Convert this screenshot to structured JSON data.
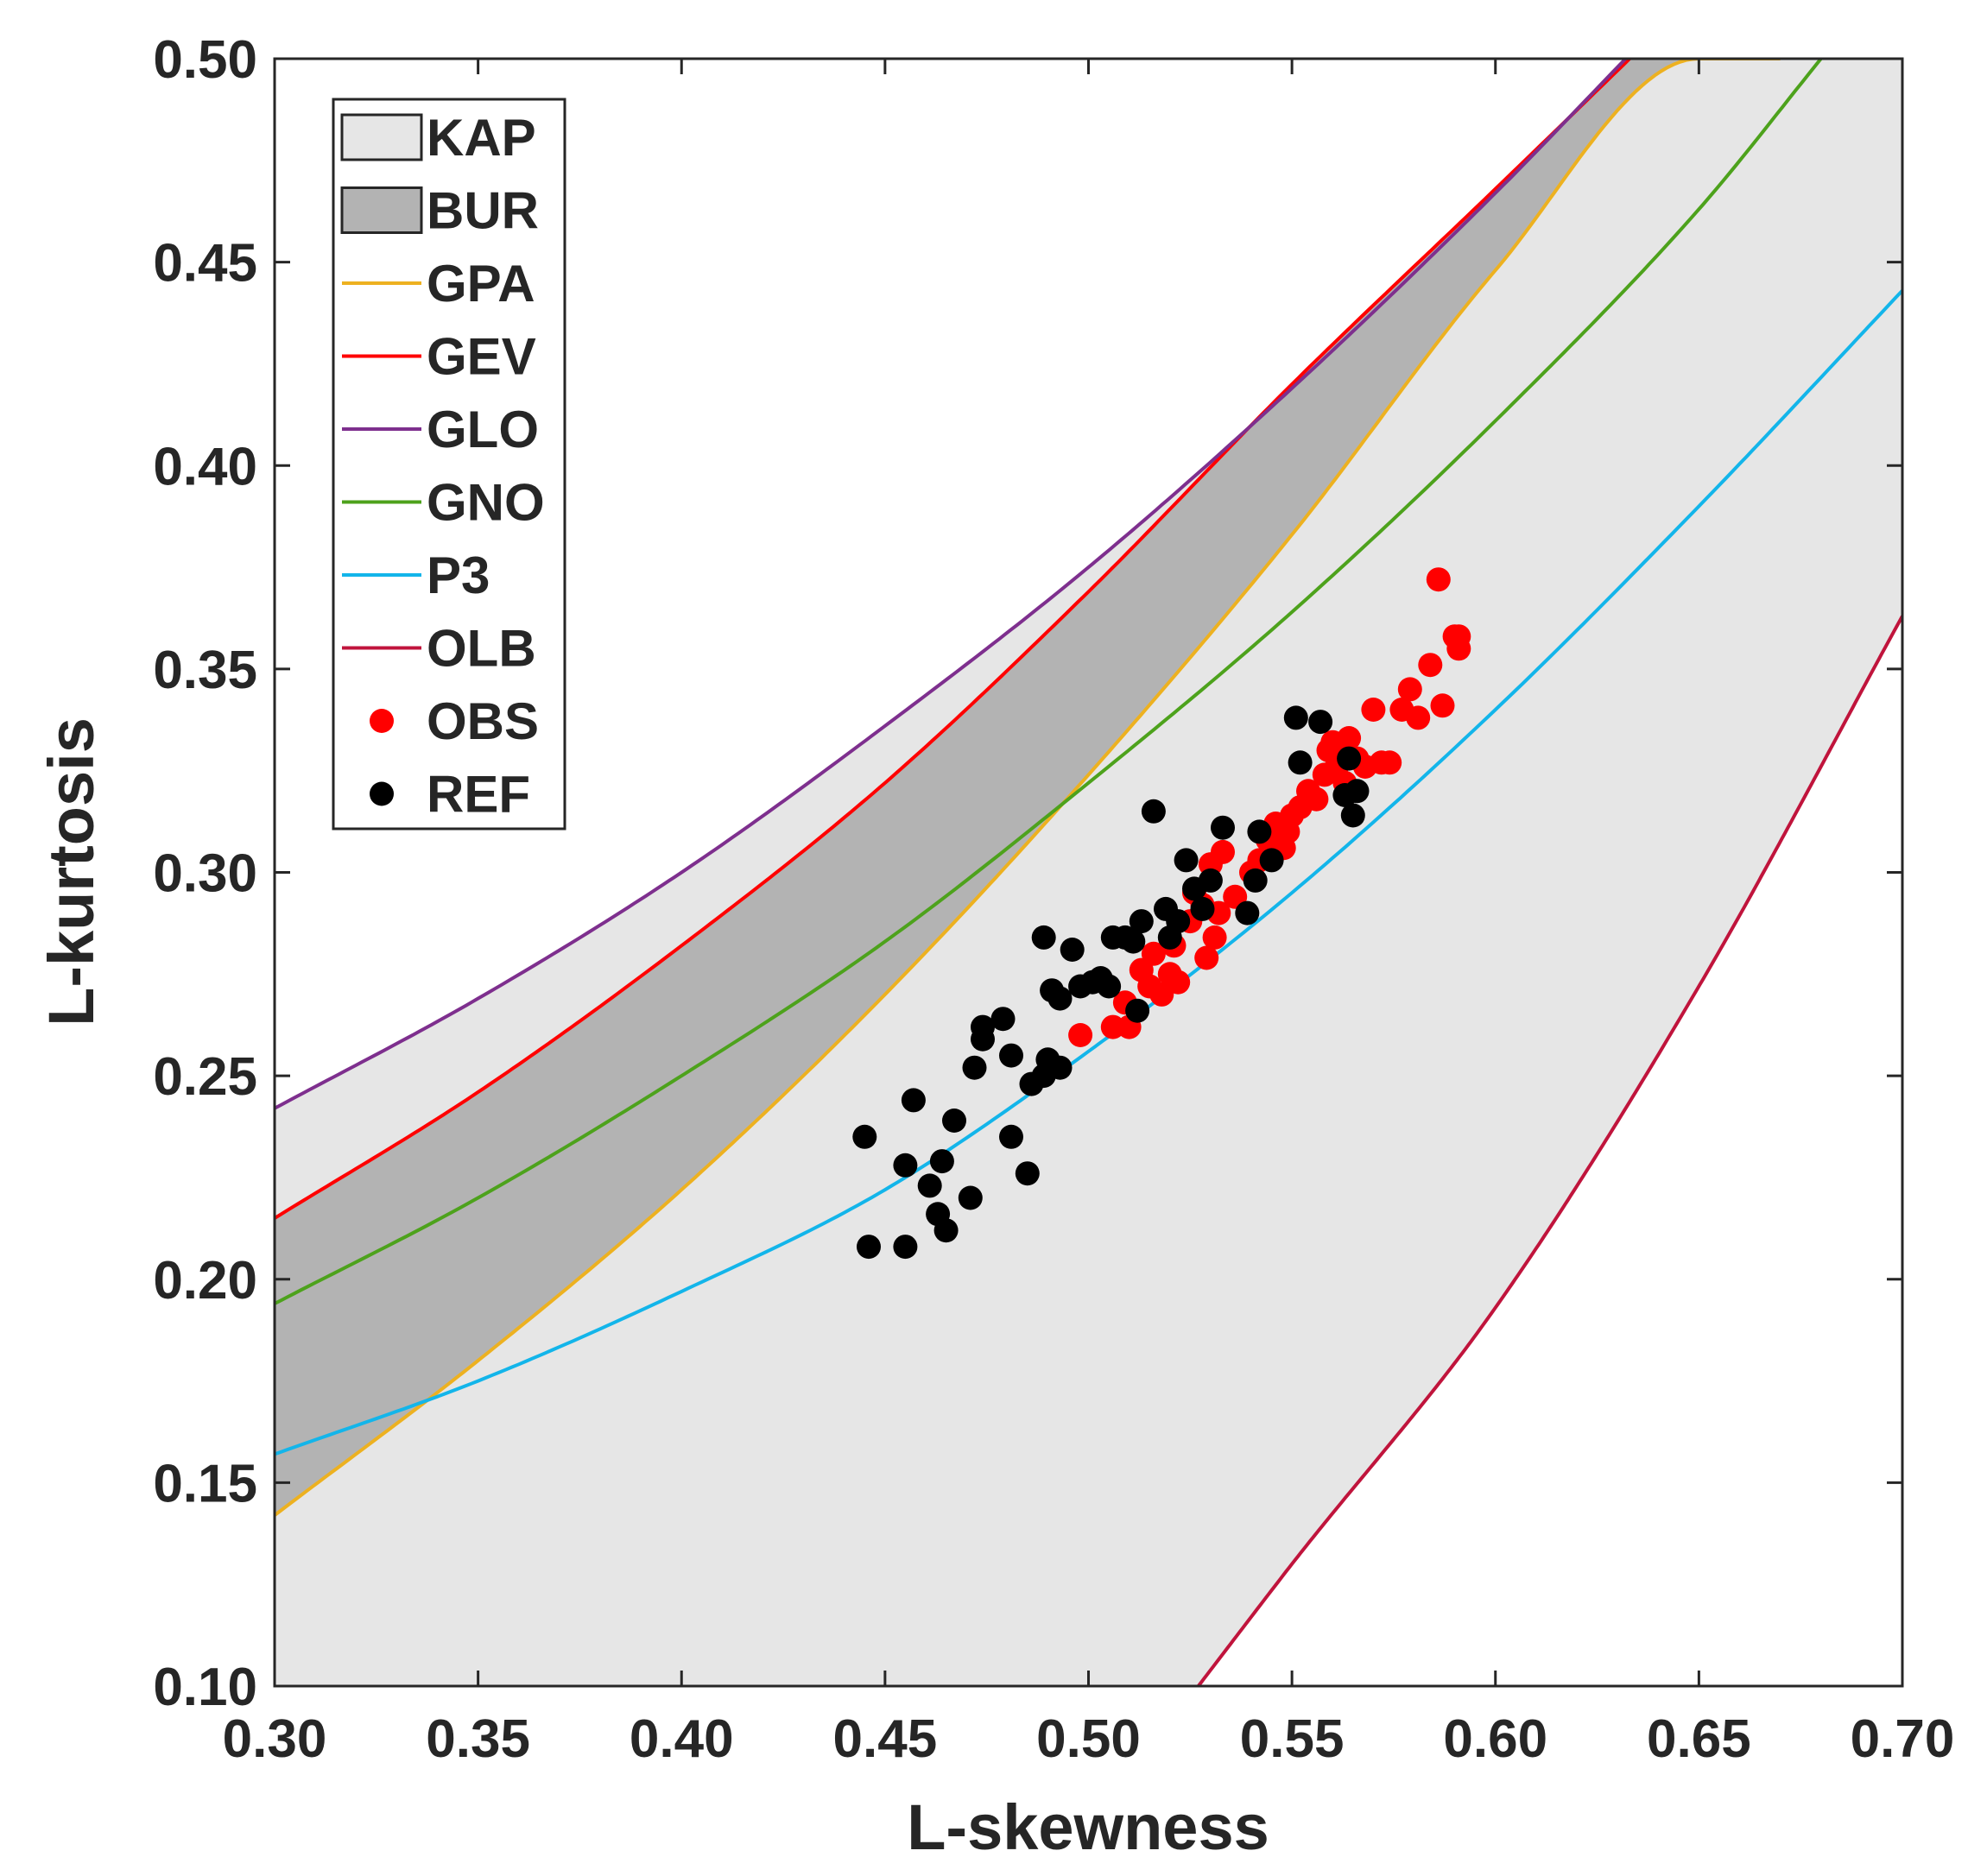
{
  "chart_data": {
    "type": "scatter",
    "title": "",
    "xlabel": "L-skewness",
    "ylabel": "L-kurtosis",
    "xlim": [
      0.3,
      0.7
    ],
    "ylim": [
      0.1,
      0.5
    ],
    "x_ticks": [
      "0.30",
      "0.35",
      "0.40",
      "0.45",
      "0.50",
      "0.55",
      "0.60",
      "0.65",
      "0.70"
    ],
    "y_ticks": [
      "0.10",
      "0.15",
      "0.20",
      "0.25",
      "0.30",
      "0.35",
      "0.40",
      "0.45",
      "0.50"
    ],
    "legend_position": "top-left",
    "legend": [
      "KAP",
      "BUR",
      "GPA",
      "GEV",
      "GLO",
      "GNO",
      "P3",
      "OLB",
      "OBS",
      "REF"
    ],
    "regions": [
      {
        "name": "KAP",
        "color": "#e6e6e6",
        "description": "area between GLO upper bound and OLB lower bound",
        "bounds": [
          "GLO",
          "OLB"
        ]
      },
      {
        "name": "BUR",
        "color": "#b3b3b3",
        "bounds": [
          "GPA",
          "GEV"
        ]
      }
    ],
    "series": [
      {
        "name": "GPA",
        "color": "#edb120",
        "x": [
          0.3,
          0.35,
          0.4,
          0.45,
          0.5,
          0.55,
          0.6,
          0.65,
          0.66
        ],
        "y": [
          0.142,
          0.18,
          0.222,
          0.27,
          0.324,
          0.383,
          0.448,
          0.5,
          0.5
        ]
      },
      {
        "name": "GEV",
        "color": "#ff0000",
        "x": [
          0.3,
          0.35,
          0.4,
          0.45,
          0.5,
          0.55,
          0.6,
          0.633
        ],
        "y": [
          0.215,
          0.246,
          0.282,
          0.322,
          0.369,
          0.42,
          0.468,
          0.5
        ]
      },
      {
        "name": "GLO",
        "color": "#7e2f8e",
        "x": [
          0.3,
          0.35,
          0.4,
          0.45,
          0.5,
          0.55,
          0.6,
          0.632
        ],
        "y": [
          0.242,
          0.269,
          0.3,
          0.336,
          0.375,
          0.419,
          0.467,
          0.5
        ]
      },
      {
        "name": "GNO",
        "color": "#4da21c",
        "x": [
          0.3,
          0.35,
          0.4,
          0.45,
          0.5,
          0.55,
          0.6,
          0.65,
          0.68
        ],
        "y": [
          0.194,
          0.22,
          0.25,
          0.283,
          0.322,
          0.364,
          0.411,
          0.463,
          0.5
        ]
      },
      {
        "name": "P3",
        "color": "#13b5ea",
        "x": [
          0.3,
          0.35,
          0.4,
          0.45,
          0.5,
          0.55,
          0.6,
          0.65,
          0.7
        ],
        "y": [
          0.157,
          0.175,
          0.197,
          0.222,
          0.256,
          0.295,
          0.34,
          0.39,
          0.443
        ]
      },
      {
        "name": "OLB",
        "color": "#c0143c",
        "x": [
          0.527,
          0.55,
          0.6,
          0.65,
          0.7
        ],
        "y": [
          0.1,
          0.13,
          0.193,
          0.272,
          0.363
        ]
      }
    ],
    "scatter": [
      {
        "name": "OBS",
        "color": "#ff0000",
        "points": [
          [
            0.498,
            0.26
          ],
          [
            0.506,
            0.262
          ],
          [
            0.509,
            0.268
          ],
          [
            0.51,
            0.262
          ],
          [
            0.513,
            0.276
          ],
          [
            0.515,
            0.272
          ],
          [
            0.516,
            0.28
          ],
          [
            0.518,
            0.27
          ],
          [
            0.52,
            0.275
          ],
          [
            0.521,
            0.282
          ],
          [
            0.522,
            0.273
          ],
          [
            0.525,
            0.288
          ],
          [
            0.526,
            0.295
          ],
          [
            0.528,
            0.292
          ],
          [
            0.529,
            0.279
          ],
          [
            0.53,
            0.302
          ],
          [
            0.531,
            0.284
          ],
          [
            0.532,
            0.29
          ],
          [
            0.533,
            0.305
          ],
          [
            0.536,
            0.294
          ],
          [
            0.54,
            0.3
          ],
          [
            0.542,
            0.303
          ],
          [
            0.544,
            0.308
          ],
          [
            0.546,
            0.312
          ],
          [
            0.548,
            0.306
          ],
          [
            0.549,
            0.31
          ],
          [
            0.55,
            0.314
          ],
          [
            0.552,
            0.316
          ],
          [
            0.554,
            0.32
          ],
          [
            0.556,
            0.318
          ],
          [
            0.558,
            0.324
          ],
          [
            0.559,
            0.33
          ],
          [
            0.56,
            0.332
          ],
          [
            0.561,
            0.326
          ],
          [
            0.563,
            0.322
          ],
          [
            0.564,
            0.333
          ],
          [
            0.566,
            0.328
          ],
          [
            0.568,
            0.326
          ],
          [
            0.57,
            0.34
          ],
          [
            0.572,
            0.327
          ],
          [
            0.574,
            0.327
          ],
          [
            0.577,
            0.34
          ],
          [
            0.579,
            0.345
          ],
          [
            0.581,
            0.338
          ],
          [
            0.584,
            0.351
          ],
          [
            0.586,
            0.372
          ],
          [
            0.587,
            0.341
          ],
          [
            0.59,
            0.358
          ],
          [
            0.591,
            0.355
          ],
          [
            0.591,
            0.358
          ]
        ]
      },
      {
        "name": "REF",
        "color": "#000000",
        "points": [
          [
            0.445,
            0.235
          ],
          [
            0.446,
            0.208
          ],
          [
            0.455,
            0.228
          ],
          [
            0.455,
            0.208
          ],
          [
            0.457,
            0.244
          ],
          [
            0.461,
            0.223
          ],
          [
            0.463,
            0.216
          ],
          [
            0.464,
            0.229
          ],
          [
            0.465,
            0.212
          ],
          [
            0.467,
            0.239
          ],
          [
            0.471,
            0.22
          ],
          [
            0.472,
            0.252
          ],
          [
            0.474,
            0.259
          ],
          [
            0.474,
            0.262
          ],
          [
            0.479,
            0.264
          ],
          [
            0.481,
            0.235
          ],
          [
            0.481,
            0.255
          ],
          [
            0.485,
            0.226
          ],
          [
            0.486,
            0.248
          ],
          [
            0.489,
            0.284
          ],
          [
            0.489,
            0.25
          ],
          [
            0.49,
            0.254
          ],
          [
            0.491,
            0.271
          ],
          [
            0.493,
            0.252
          ],
          [
            0.493,
            0.269
          ],
          [
            0.496,
            0.281
          ],
          [
            0.498,
            0.272
          ],
          [
            0.501,
            0.273
          ],
          [
            0.503,
            0.274
          ],
          [
            0.505,
            0.272
          ],
          [
            0.506,
            0.284
          ],
          [
            0.509,
            0.284
          ],
          [
            0.511,
            0.283
          ],
          [
            0.512,
            0.266
          ],
          [
            0.513,
            0.288
          ],
          [
            0.516,
            0.315
          ],
          [
            0.519,
            0.291
          ],
          [
            0.52,
            0.284
          ],
          [
            0.522,
            0.288
          ],
          [
            0.524,
            0.303
          ],
          [
            0.526,
            0.296
          ],
          [
            0.528,
            0.291
          ],
          [
            0.53,
            0.298
          ],
          [
            0.533,
            0.311
          ],
          [
            0.539,
            0.29
          ],
          [
            0.541,
            0.298
          ],
          [
            0.542,
            0.31
          ],
          [
            0.545,
            0.303
          ],
          [
            0.551,
            0.338
          ],
          [
            0.552,
            0.327
          ],
          [
            0.557,
            0.337
          ],
          [
            0.563,
            0.319
          ],
          [
            0.564,
            0.328
          ],
          [
            0.565,
            0.314
          ],
          [
            0.566,
            0.32
          ]
        ]
      }
    ]
  }
}
